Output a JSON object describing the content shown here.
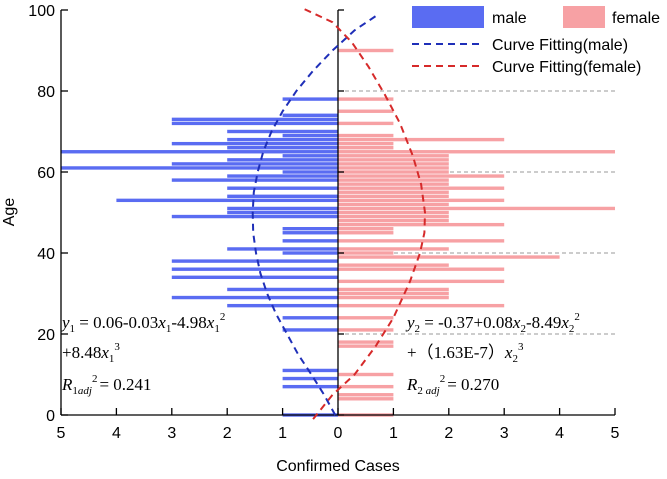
{
  "chart_data": {
    "type": "bar",
    "orientation": "horizontal-population-pyramid",
    "xlabel": "Confirmed Cases",
    "ylabel": "Age",
    "xlim": [
      -5,
      5
    ],
    "ylim": [
      0,
      100
    ],
    "x_tick_labels": [
      "5",
      "4",
      "3",
      "2",
      "1",
      "0",
      "1",
      "2",
      "3",
      "4",
      "5"
    ],
    "y_ticks": [
      0,
      20,
      40,
      60,
      80,
      100
    ],
    "grid": "dashed horizontal at 20, 40, 60, 80 (right panel only)",
    "legend": {
      "placement": "top-right",
      "entries": [
        {
          "label": "male",
          "type": "patch"
        },
        {
          "label": "female",
          "type": "patch"
        },
        {
          "label": "Curve Fitting(male)",
          "type": "dashed-line"
        },
        {
          "label": "Curve Fitting(female)",
          "type": "dashed-line"
        }
      ]
    },
    "series": [
      {
        "name": "male",
        "color": "#5a6cf2",
        "side": "left",
        "bars": [
          {
            "age": 0,
            "value": 1
          },
          {
            "age": 7,
            "value": 1
          },
          {
            "age": 9,
            "value": 1
          },
          {
            "age": 11,
            "value": 1
          },
          {
            "age": 21,
            "value": 1
          },
          {
            "age": 24,
            "value": 1
          },
          {
            "age": 27,
            "value": 2
          },
          {
            "age": 29,
            "value": 3
          },
          {
            "age": 31,
            "value": 2
          },
          {
            "age": 34,
            "value": 3
          },
          {
            "age": 36,
            "value": 3
          },
          {
            "age": 38,
            "value": 3
          },
          {
            "age": 40,
            "value": 1
          },
          {
            "age": 41,
            "value": 2
          },
          {
            "age": 43,
            "value": 1
          },
          {
            "age": 45,
            "value": 1
          },
          {
            "age": 46,
            "value": 1
          },
          {
            "age": 49,
            "value": 3
          },
          {
            "age": 50,
            "value": 2
          },
          {
            "age": 51,
            "value": 2
          },
          {
            "age": 53,
            "value": 4
          },
          {
            "age": 54,
            "value": 2
          },
          {
            "age": 56,
            "value": 2
          },
          {
            "age": 58,
            "value": 3
          },
          {
            "age": 59,
            "value": 2
          },
          {
            "age": 60,
            "value": 1
          },
          {
            "age": 61,
            "value": 5
          },
          {
            "age": 62,
            "value": 3
          },
          {
            "age": 63,
            "value": 2
          },
          {
            "age": 64,
            "value": 1
          },
          {
            "age": 65,
            "value": 5
          },
          {
            "age": 66,
            "value": 2
          },
          {
            "age": 67,
            "value": 3
          },
          {
            "age": 68,
            "value": 2
          },
          {
            "age": 69,
            "value": 1
          },
          {
            "age": 70,
            "value": 2
          },
          {
            "age": 72,
            "value": 3
          },
          {
            "age": 73,
            "value": 3
          },
          {
            "age": 74,
            "value": 1
          },
          {
            "age": 78,
            "value": 1
          }
        ]
      },
      {
        "name": "female",
        "color": "#f7a1a4",
        "side": "right",
        "bars": [
          {
            "age": 0,
            "value": 1
          },
          {
            "age": 4,
            "value": 1
          },
          {
            "age": 5,
            "value": 1
          },
          {
            "age": 7,
            "value": 1
          },
          {
            "age": 10,
            "value": 1
          },
          {
            "age": 17,
            "value": 1
          },
          {
            "age": 18,
            "value": 1
          },
          {
            "age": 21,
            "value": 1
          },
          {
            "age": 24,
            "value": 1
          },
          {
            "age": 27,
            "value": 3
          },
          {
            "age": 29,
            "value": 2
          },
          {
            "age": 30,
            "value": 2
          },
          {
            "age": 31,
            "value": 2
          },
          {
            "age": 33,
            "value": 3
          },
          {
            "age": 36,
            "value": 3
          },
          {
            "age": 37,
            "value": 2
          },
          {
            "age": 39,
            "value": 4
          },
          {
            "age": 40,
            "value": 1
          },
          {
            "age": 41,
            "value": 2
          },
          {
            "age": 43,
            "value": 3
          },
          {
            "age": 45,
            "value": 1
          },
          {
            "age": 46,
            "value": 1
          },
          {
            "age": 47,
            "value": 3
          },
          {
            "age": 48,
            "value": 2
          },
          {
            "age": 49,
            "value": 2
          },
          {
            "age": 50,
            "value": 2
          },
          {
            "age": 51,
            "value": 5
          },
          {
            "age": 52,
            "value": 2
          },
          {
            "age": 53,
            "value": 3
          },
          {
            "age": 54,
            "value": 2
          },
          {
            "age": 55,
            "value": 2
          },
          {
            "age": 56,
            "value": 3
          },
          {
            "age": 57,
            "value": 2
          },
          {
            "age": 58,
            "value": 2
          },
          {
            "age": 59,
            "value": 3
          },
          {
            "age": 60,
            "value": 2
          },
          {
            "age": 61,
            "value": 2
          },
          {
            "age": 62,
            "value": 2
          },
          {
            "age": 63,
            "value": 2
          },
          {
            "age": 64,
            "value": 2
          },
          {
            "age": 65,
            "value": 5
          },
          {
            "age": 66,
            "value": 1
          },
          {
            "age": 67,
            "value": 1
          },
          {
            "age": 68,
            "value": 3
          },
          {
            "age": 69,
            "value": 1
          },
          {
            "age": 72,
            "value": 1
          },
          {
            "age": 75,
            "value": 1
          },
          {
            "age": 78,
            "value": 1
          },
          {
            "age": 90,
            "value": 1
          }
        ]
      }
    ],
    "fits": [
      {
        "name": "Curve Fitting(male)",
        "color": "#1f2fb8",
        "points": [
          [
            -0.05,
            0
          ],
          [
            -0.25,
            5
          ],
          [
            -0.48,
            10
          ],
          [
            -0.72,
            15
          ],
          [
            -0.92,
            20
          ],
          [
            -1.12,
            25
          ],
          [
            -1.28,
            30
          ],
          [
            -1.4,
            35
          ],
          [
            -1.48,
            40
          ],
          [
            -1.53,
            45
          ],
          [
            -1.54,
            50
          ],
          [
            -1.52,
            55
          ],
          [
            -1.45,
            60
          ],
          [
            -1.35,
            65
          ],
          [
            -1.2,
            70
          ],
          [
            -1.0,
            75
          ],
          [
            -0.75,
            80
          ],
          [
            -0.45,
            85
          ],
          [
            -0.1,
            90
          ],
          [
            0.3,
            95
          ],
          [
            0.68,
            98.5
          ]
        ]
      },
      {
        "name": "Curve Fitting(female)",
        "color": "#d62a2a",
        "points": [
          [
            -0.45,
            -1
          ],
          [
            -0.1,
            5
          ],
          [
            0.3,
            10
          ],
          [
            0.68,
            17
          ],
          [
            1.0,
            24
          ],
          [
            1.3,
            33
          ],
          [
            1.48,
            40
          ],
          [
            1.56,
            45
          ],
          [
            1.57,
            50
          ],
          [
            1.5,
            57
          ],
          [
            1.35,
            64
          ],
          [
            1.12,
            72
          ],
          [
            0.85,
            79
          ],
          [
            0.55,
            86
          ],
          [
            0.25,
            92
          ],
          [
            -0.1,
            97
          ],
          [
            -0.65,
            100.5
          ]
        ]
      }
    ],
    "annotations": {
      "male_eq_line1_parts": [
        "y",
        "1",
        " = 0.06-0.03",
        "x",
        "1",
        "-4.98",
        "x",
        "1",
        "2"
      ],
      "male_eq_line2_parts": [
        "+8.48",
        "x",
        "1",
        "3"
      ],
      "male_r2_parts": [
        "R",
        "1",
        "adj",
        "2",
        "= 0.241"
      ],
      "female_eq_line1_parts": [
        "y",
        "2",
        " = -0.37+0.08",
        "x",
        "2",
        "-8.49",
        "x",
        "2",
        "2"
      ],
      "female_eq_line2_parts": [
        "+（1.63E-7）",
        "x",
        "2",
        "3"
      ],
      "female_r2_parts": [
        "R",
        "2 ",
        "adj",
        "2",
        "= 0.270"
      ]
    }
  }
}
